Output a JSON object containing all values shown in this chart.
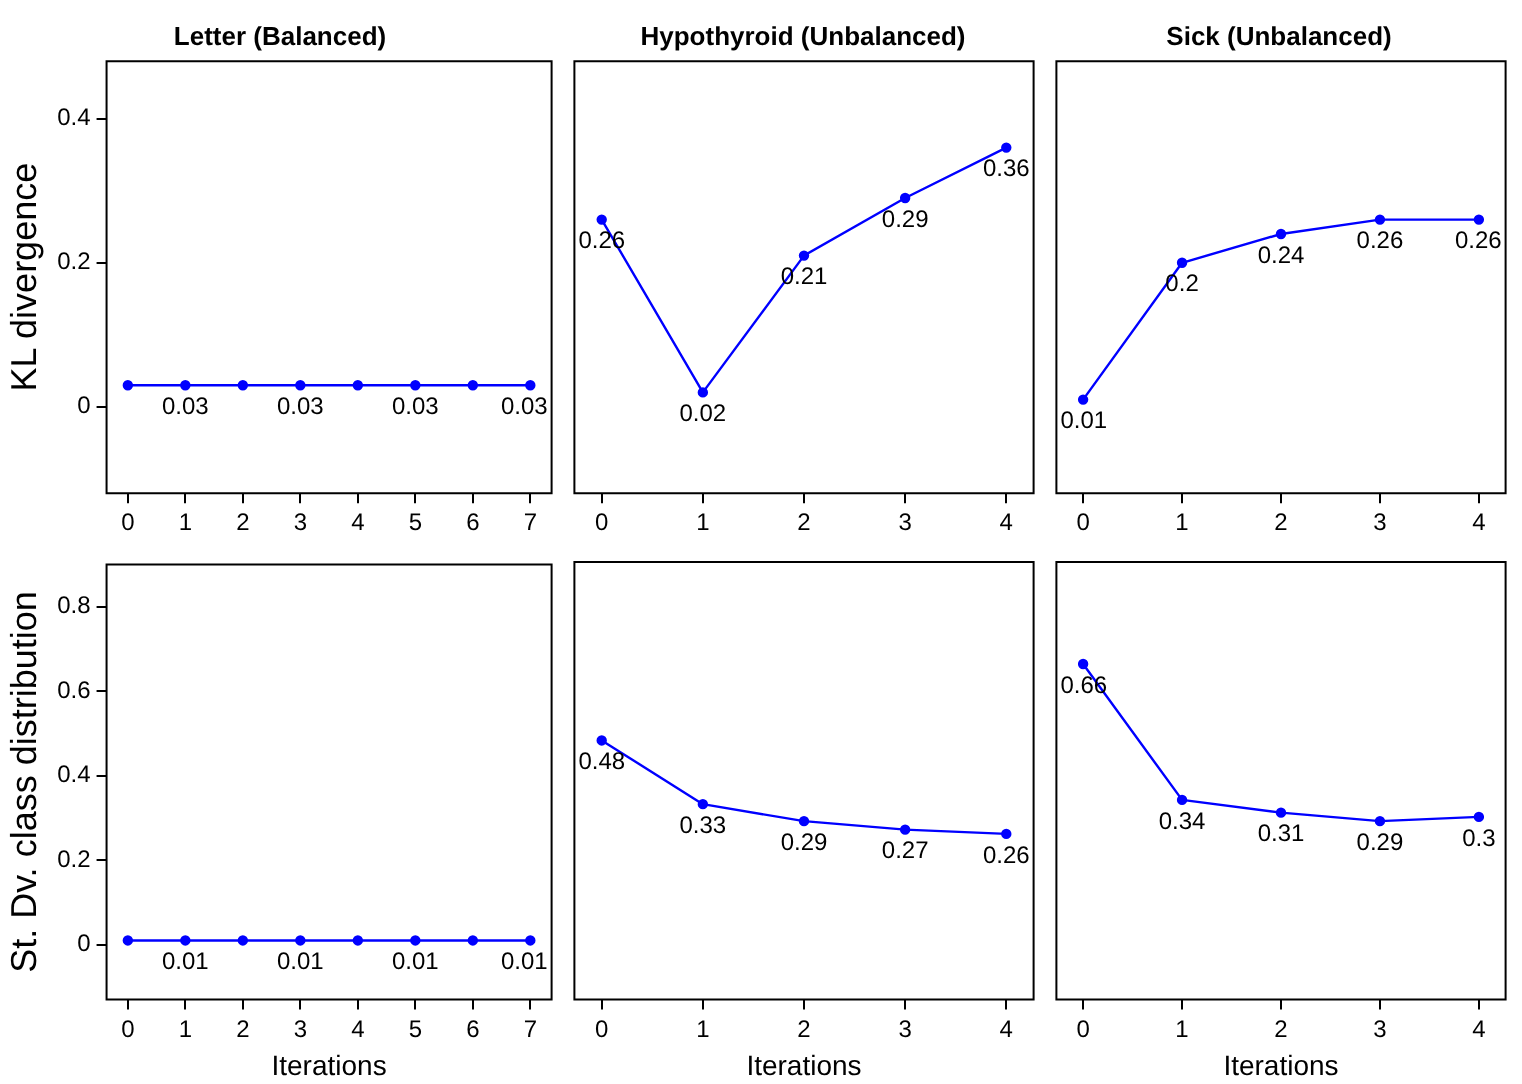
{
  "chart_data": [
    {
      "type": "line",
      "title": "Letter (Balanced)",
      "ylabel": "KL divergence",
      "x": [
        0,
        1,
        2,
        3,
        4,
        5,
        6,
        7
      ],
      "color": "#0000ff",
      "marker": "circle",
      "grid": false,
      "legend": false,
      "xlim": [
        -0.37,
        7.37
      ],
      "xticks": [
        0,
        1,
        2,
        3,
        4,
        5,
        6,
        7
      ],
      "ylim": [
        -0.12,
        0.48
      ],
      "yticks": [
        0,
        0.2,
        0.4
      ],
      "values": [
        0.03,
        0.03,
        0.03,
        0.03,
        0.03,
        0.03,
        0.03,
        0.03
      ],
      "value_labels": [
        null,
        "0.03",
        null,
        "0.03",
        null,
        "0.03",
        null,
        "0.03"
      ]
    },
    {
      "type": "line",
      "title": "Hypothyroid (Unbalanced)",
      "x": [
        0,
        1,
        2,
        3,
        4
      ],
      "color": "#0000ff",
      "marker": "circle",
      "grid": false,
      "legend": false,
      "tick_labels": "x",
      "xlim": [
        -0.27,
        4.27
      ],
      "xticks": [
        0,
        1,
        2,
        3,
        4
      ],
      "ylim": [
        -0.12,
        0.48
      ],
      "data_labels": true,
      "values": [
        0.26,
        0.02,
        0.21,
        0.29,
        0.36
      ]
    },
    {
      "type": "line",
      "title": "Sick (Unbalanced)",
      "x": [
        0,
        1,
        2,
        3,
        4
      ],
      "color": "#0000ff",
      "marker": "circle",
      "grid": false,
      "legend": false,
      "tick_labels": "x",
      "xlim": [
        -0.27,
        4.27
      ],
      "xticks": [
        0,
        1,
        2,
        3,
        4
      ],
      "ylim": [
        -0.12,
        0.48
      ],
      "data_labels": true,
      "values": [
        0.01,
        0.2,
        0.24,
        0.26,
        0.26
      ]
    },
    {
      "type": "line",
      "ylabel": "St. Dv. class distribution",
      "xlabel": "Iterations",
      "x": [
        0,
        1,
        2,
        3,
        4,
        5,
        6,
        7
      ],
      "color": "#0000ff",
      "marker": "circle",
      "grid": false,
      "legend": false,
      "xlim": [
        -0.37,
        7.37
      ],
      "xticks": [
        0,
        1,
        2,
        3,
        4,
        5,
        6,
        7
      ],
      "ylim": [
        -0.13,
        0.9
      ],
      "yticks": [
        0,
        0.2,
        0.4,
        0.6,
        0.8
      ],
      "values": [
        0.01,
        0.01,
        0.01,
        0.01,
        0.01,
        0.01,
        0.01,
        0.01
      ],
      "value_labels": [
        null,
        "0.01",
        null,
        "0.01",
        null,
        "0.01",
        null,
        "0.01"
      ]
    },
    {
      "type": "line",
      "xlabel": "Iterations",
      "x": [
        0,
        1,
        2,
        3,
        4
      ],
      "color": "#0000ff",
      "marker": "circle",
      "grid": false,
      "legend": false,
      "tick_labels": "x",
      "xlim": [
        -0.27,
        4.27
      ],
      "xticks": [
        0,
        1,
        2,
        3,
        4
      ],
      "ylim": [
        -0.13,
        0.9
      ],
      "data_labels": true,
      "values": [
        0.48,
        0.33,
        0.29,
        0.27,
        0.26
      ]
    },
    {
      "type": "line",
      "xlabel": "Iterations",
      "x": [
        0,
        1,
        2,
        3,
        4
      ],
      "color": "#0000ff",
      "marker": "circle",
      "grid": false,
      "legend": false,
      "tick_labels": "x",
      "xlim": [
        -0.27,
        4.27
      ],
      "xticks": [
        0,
        1,
        2,
        3,
        4
      ],
      "ylim": [
        -0.13,
        0.9
      ],
      "data_labels": true,
      "values": [
        0.66,
        0.34,
        0.31,
        0.29,
        0.3
      ]
    }
  ]
}
